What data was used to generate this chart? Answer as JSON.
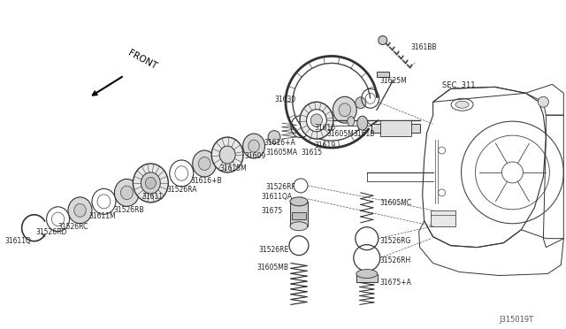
{
  "bg_color": "#ffffff",
  "line_color": "#222222",
  "fig_width": 6.4,
  "fig_height": 3.72,
  "dpi": 100,
  "diagram_id": "J315019T",
  "front_label": "FRONT",
  "sec_label": "SEC. 311"
}
